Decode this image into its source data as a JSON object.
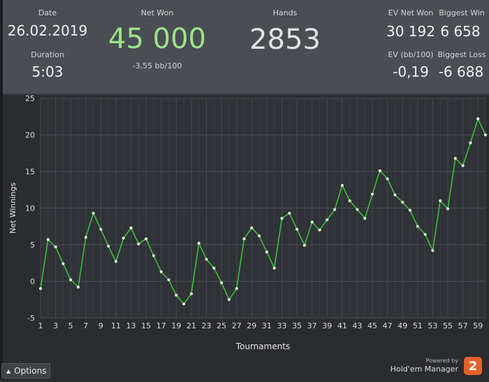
{
  "stats": {
    "date": {
      "label": "Date",
      "value": "26.02.2019"
    },
    "duration": {
      "label": "Duration",
      "value": "5:03"
    },
    "net_won": {
      "label": "Net Won",
      "value": "45 000",
      "sub": "-3,55 bb/100",
      "color": "#9be38b"
    },
    "hands": {
      "label": "Hands",
      "value": "2853"
    },
    "ev_net_won": {
      "label": "EV Net Won",
      "value": "30 192"
    },
    "biggest_win": {
      "label": "Biggest Win",
      "value": "6 658"
    },
    "ev_bb100": {
      "label": "EV (bb/100)",
      "value": "-0,19"
    },
    "biggest_loss": {
      "label": "Biggest Loss",
      "value": "-6 688"
    }
  },
  "chart_data": {
    "type": "line",
    "xlabel": "Tournaments",
    "ylabel": "Net Winnings",
    "xlim": [
      1,
      60
    ],
    "ylim": [
      -5,
      25
    ],
    "yticks": [
      -5,
      0,
      5,
      10,
      15,
      20,
      25
    ],
    "xticks": [
      1,
      3,
      5,
      7,
      9,
      11,
      13,
      15,
      17,
      19,
      21,
      23,
      25,
      27,
      29,
      31,
      33,
      35,
      37,
      39,
      41,
      43,
      45,
      47,
      49,
      51,
      53,
      55,
      57,
      59
    ],
    "grid": true,
    "series": [
      {
        "color": "#3fbf3f",
        "x": [
          1,
          2,
          3,
          4,
          5,
          6,
          7,
          8,
          9,
          10,
          11,
          12,
          13,
          14,
          15,
          16,
          17,
          18,
          19,
          20,
          21,
          22,
          23,
          24,
          25,
          26,
          27,
          28,
          29,
          30,
          31,
          32,
          33,
          34,
          35,
          36,
          37,
          38,
          39,
          40,
          41,
          42,
          43,
          44,
          45,
          46,
          47,
          48,
          49,
          50,
          51,
          52,
          53,
          54,
          55,
          56,
          57,
          58,
          59,
          60
        ],
        "values": [
          -1,
          5.7,
          4.7,
          2.4,
          0.2,
          -0.8,
          6,
          9.3,
          7.1,
          4.8,
          2.7,
          5.9,
          7.3,
          5.1,
          5.8,
          3.5,
          1.3,
          0.2,
          -1.9,
          -3.1,
          -1.7,
          5.2,
          3,
          1.8,
          -0.2,
          -2.5,
          -1,
          5.8,
          7.3,
          6.2,
          4,
          1.8,
          8.6,
          9.3,
          7.1,
          4.9,
          8.1,
          7,
          8.4,
          9.8,
          13.1,
          11,
          9.8,
          8.6,
          11.9,
          15.1,
          14,
          11.8,
          10.8,
          9.7,
          7.5,
          6.4,
          4.2,
          11,
          9.9,
          16.8,
          15.8,
          18.9,
          22.2,
          20
        ]
      }
    ]
  },
  "footer": {
    "options_label": "Options",
    "powered_by": "Powered by",
    "brand_name": "Hold'em Manager",
    "logo_text": "2"
  }
}
